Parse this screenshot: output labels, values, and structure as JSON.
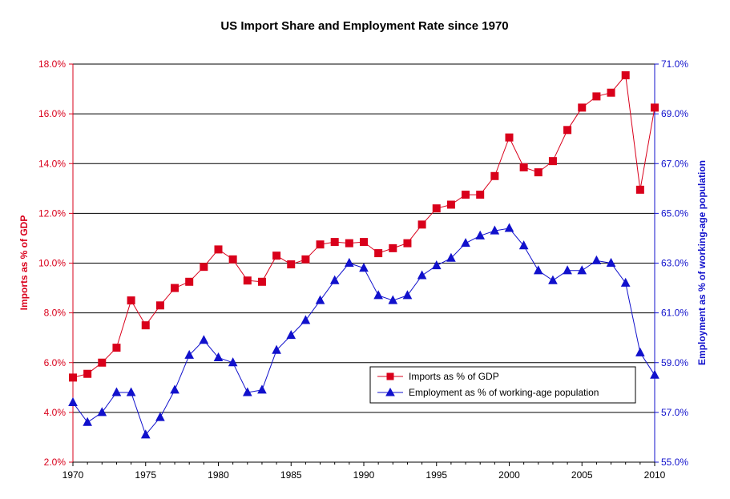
{
  "chart_data": {
    "type": "line",
    "title": "US Import Share and Employment Rate since 1970",
    "ylabel": "Imports as % of GDP",
    "y2label": "Employment as % of working-age population",
    "xlabel": "",
    "xlim": [
      1970,
      2010
    ],
    "ylim": [
      2.0,
      18.0
    ],
    "y2lim": [
      55.0,
      71.0
    ],
    "grid": true,
    "legend_position": "lower-right",
    "x_ticks": [
      "1970",
      "1975",
      "1980",
      "1985",
      "1990",
      "1995",
      "2000",
      "2005",
      "2010"
    ],
    "y_ticks": [
      "2.0%",
      "4.0%",
      "6.0%",
      "8.0%",
      "10.0%",
      "12.0%",
      "14.0%",
      "16.0%",
      "18.0%"
    ],
    "y2_ticks": [
      "55.0%",
      "57.0%",
      "59.0%",
      "61.0%",
      "63.0%",
      "65.0%",
      "67.0%",
      "69.0%",
      "71.0%"
    ],
    "x": [
      1970,
      1971,
      1972,
      1973,
      1974,
      1975,
      1976,
      1977,
      1978,
      1979,
      1980,
      1981,
      1982,
      1983,
      1984,
      1985,
      1986,
      1987,
      1988,
      1989,
      1990,
      1991,
      1992,
      1993,
      1994,
      1995,
      1996,
      1997,
      1998,
      1999,
      2000,
      2001,
      2002,
      2003,
      2004,
      2005,
      2006,
      2007,
      2008,
      2009,
      2010
    ],
    "series": [
      {
        "name": "Imports as % of GDP",
        "axis": "left",
        "color": "#d9001b",
        "marker": "square",
        "values": [
          5.4,
          5.55,
          6.0,
          6.6,
          8.5,
          7.5,
          8.3,
          9.0,
          9.25,
          9.85,
          10.55,
          10.15,
          9.3,
          9.25,
          10.3,
          9.95,
          10.15,
          10.75,
          10.85,
          10.8,
          10.85,
          10.4,
          10.6,
          10.8,
          11.55,
          12.2,
          12.35,
          12.75,
          12.75,
          13.5,
          15.05,
          13.85,
          13.65,
          14.1,
          15.35,
          16.25,
          16.7,
          16.85,
          17.55,
          12.95,
          16.25
        ]
      },
      {
        "name": "Employment as % of working-age population",
        "axis": "right",
        "color": "#1111cc",
        "marker": "triangle",
        "values": [
          57.4,
          56.6,
          57.0,
          57.8,
          57.8,
          56.1,
          56.8,
          57.9,
          59.3,
          59.9,
          59.2,
          59.0,
          57.8,
          57.9,
          59.5,
          60.1,
          60.7,
          61.5,
          62.3,
          63.0,
          62.8,
          61.7,
          61.5,
          61.7,
          62.5,
          62.9,
          63.2,
          63.8,
          64.1,
          64.3,
          64.4,
          63.7,
          62.7,
          62.3,
          62.7,
          62.7,
          63.1,
          63.0,
          62.2,
          59.4,
          58.5
        ]
      }
    ]
  }
}
